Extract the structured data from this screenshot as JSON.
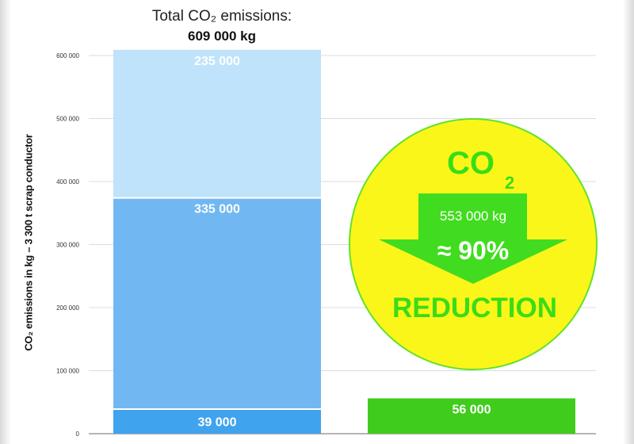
{
  "chart_data": {
    "type": "bar",
    "stacked": true,
    "title_line1": "Total CO₂ emissions:",
    "title_line2": "609 000 kg",
    "ylabel": "CO₂ emissions in kg – 3 300 t scrap conductor",
    "ylim": [
      0,
      600000
    ],
    "yticks": [
      "0",
      "100 000",
      "200 000",
      "300 000",
      "400 000",
      "500 000",
      "600 000"
    ],
    "grid": true,
    "bars": [
      {
        "segments": [
          {
            "value": 39000,
            "label": "39 000",
            "color": "#3fa3ee"
          },
          {
            "value": 335000,
            "label": "335 000",
            "color": "#71b8f3"
          },
          {
            "value": 235000,
            "label": "235 000",
            "color": "#bfe3fb"
          }
        ]
      },
      {
        "segments": [
          {
            "value": 56000,
            "label": "56 000",
            "color": "#3fcc1c"
          }
        ]
      }
    ],
    "annotation": {
      "title": "CO",
      "subscript": "2",
      "amount": "553 000 kg",
      "percent": "≈ 90%",
      "reduction": "REDUCTION",
      "circle_color": "#fbf61a",
      "arrow_color": "#41dc1f",
      "text_color": "#39dd16"
    }
  }
}
